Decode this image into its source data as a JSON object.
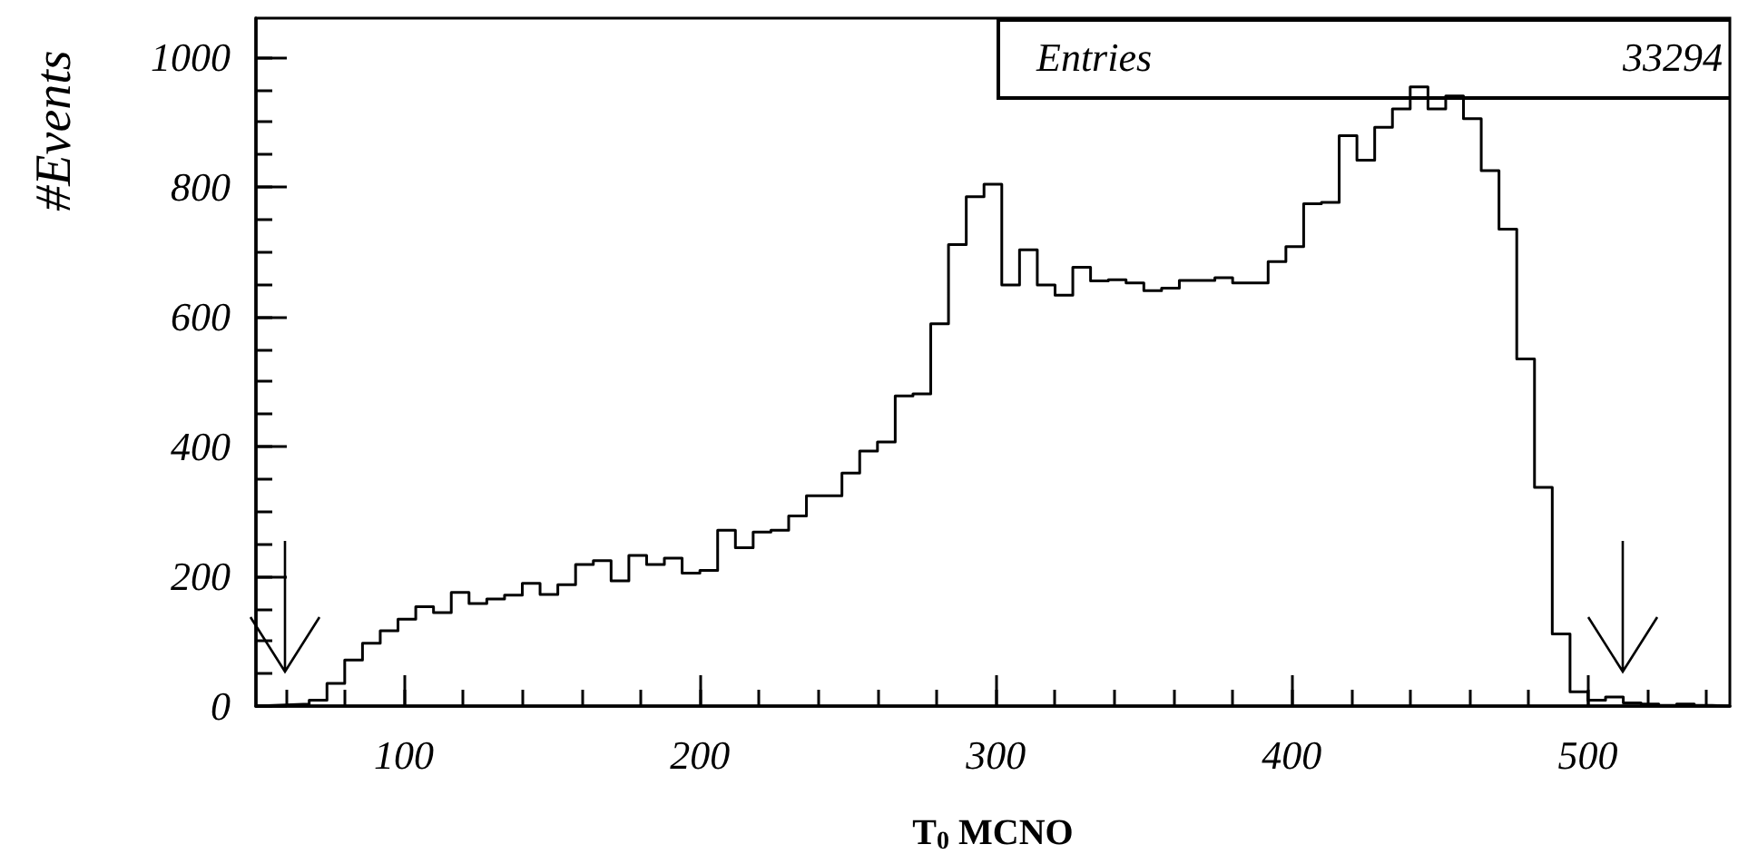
{
  "chart_data": {
    "type": "histogram",
    "xlabel": "T$_{0}$ MCNO",
    "ylabel": "#Events",
    "annotations": [
      "Entries",
      "33294"
    ],
    "color": "#000000",
    "bins": [
      50,
      56,
      62,
      68,
      74,
      80,
      86,
      92,
      98,
      104,
      110,
      116,
      122,
      128,
      134,
      140,
      146,
      152,
      158,
      164,
      170,
      176,
      182,
      188,
      194,
      200,
      206,
      212,
      218,
      224,
      230,
      236,
      242,
      248,
      254,
      260,
      266,
      272,
      278,
      284,
      290,
      296,
      302,
      308,
      314,
      320,
      326,
      332,
      338,
      344,
      350,
      356,
      362,
      368,
      374,
      380,
      386,
      392,
      398,
      404,
      410,
      416,
      422,
      428,
      434,
      440,
      446,
      452,
      458,
      464,
      470,
      476,
      482,
      488,
      494,
      500,
      506,
      512,
      518,
      524,
      530,
      536,
      542,
      548
    ],
    "values": [
      1,
      2,
      3,
      9,
      35,
      71,
      97,
      116,
      134,
      153,
      144,
      175,
      158,
      165,
      171,
      189,
      172,
      187,
      218,
      224,
      193,
      232,
      218,
      228,
      205,
      209,
      271,
      244,
      268,
      271,
      293,
      324,
      324,
      359,
      393,
      407,
      478,
      481,
      589,
      711,
      785,
      804,
      649,
      703,
      649,
      633,
      676,
      655,
      657,
      652,
      640,
      644,
      656,
      656,
      660,
      652,
      652,
      685,
      708,
      774,
      776,
      879,
      841,
      892,
      920,
      954,
      920,
      940,
      905,
      825,
      735,
      535,
      337,
      111,
      22,
      9,
      14,
      5,
      3,
      1,
      3,
      1,
      0
    ],
    "xlim": [
      50,
      548
    ],
    "xticks": [
      {
        "value": 60,
        "label": null
      },
      {
        "value": 80,
        "label": null
      },
      100,
      {
        "value": 120,
        "label": null
      },
      {
        "value": 140,
        "label": null
      },
      {
        "value": 160,
        "label": null
      },
      {
        "value": 180,
        "label": null
      },
      200,
      {
        "value": 220,
        "label": null
      },
      {
        "value": 240,
        "label": null
      },
      {
        "value": 260,
        "label": null
      },
      {
        "value": 280,
        "label": null
      },
      300,
      {
        "value": 320,
        "label": null
      },
      {
        "value": 340,
        "label": null
      },
      {
        "value": 360,
        "label": null
      },
      {
        "value": 380,
        "label": null
      },
      400,
      {
        "value": 420,
        "label": null
      },
      {
        "value": 440,
        "label": null
      },
      {
        "value": 460,
        "label": null
      },
      {
        "value": 480,
        "label": null
      },
      500,
      {
        "value": 520,
        "label": null
      },
      {
        "value": 540,
        "label": null
      }
    ],
    "ylim": [
      0,
      1060
    ],
    "yticks": [
      0,
      {
        "value": 50,
        "label": null
      },
      {
        "value": 100,
        "label": null
      },
      {
        "value": 150,
        "label": null
      },
      200,
      {
        "value": 250,
        "label": null
      },
      {
        "value": 300,
        "label": null
      },
      {
        "value": 350,
        "label": null
      },
      400,
      {
        "value": 450,
        "label": null
      },
      {
        "value": 500,
        "label": null
      },
      {
        "value": 550,
        "label": null
      },
      600,
      {
        "value": 650,
        "label": null
      },
      {
        "value": 700,
        "label": null
      },
      {
        "value": 750,
        "label": null
      },
      800,
      {
        "value": 850,
        "label": null
      },
      {
        "value": 900,
        "label": null
      },
      {
        "value": 950,
        "label": null
      },
      1000
    ]
  }
}
